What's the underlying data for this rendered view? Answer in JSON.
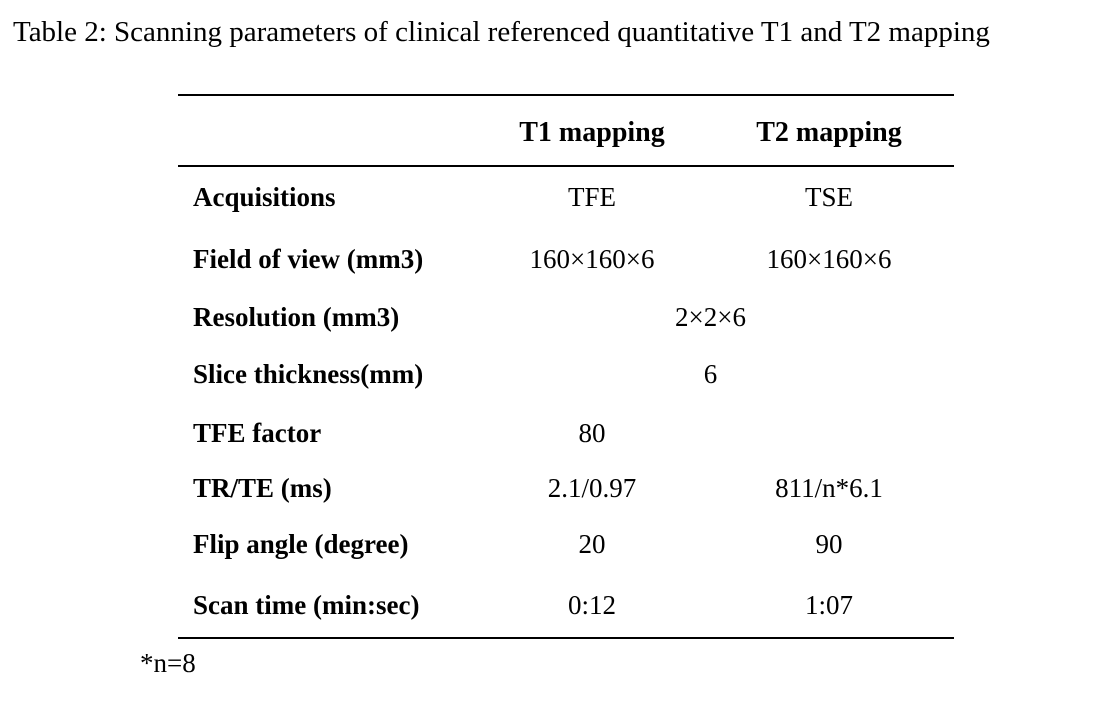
{
  "caption": "Table 2: Scanning parameters of clinical referenced quantitative T1 and T2 mapping",
  "table": {
    "headers": [
      "",
      "T1 mapping",
      "T2 mapping"
    ],
    "rows": [
      {
        "label": "Acquisitions",
        "t1": "TFE",
        "t2": "TSE"
      },
      {
        "label": "Field of view (mm3)",
        "t1": "160×160×6",
        "t2": "160×160×6"
      },
      {
        "label": "Resolution (mm3)",
        "span": "2×2×6"
      },
      {
        "label": "Slice thickness(mm)",
        "span": "6"
      },
      {
        "label": "TFE factor",
        "t1": "80",
        "t2": ""
      },
      {
        "label": "TR/TE (ms)",
        "t1": "2.1/0.97",
        "t2": "811/n*6.1"
      },
      {
        "label": "Flip angle (degree)",
        "t1": "20",
        "t2": "90"
      },
      {
        "label": "Scan time (min:sec)",
        "t1": "0:12",
        "t2": "1:07"
      }
    ]
  },
  "footnote": "*n=8"
}
